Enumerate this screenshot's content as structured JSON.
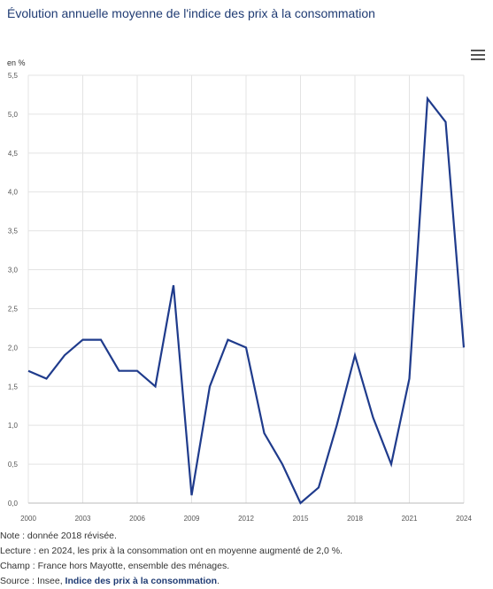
{
  "title": "Évolution annuelle moyenne de l'indice des prix à la consommation",
  "menu_icon": "hamburger-menu-icon",
  "chart_data": {
    "type": "line",
    "title": "Évolution annuelle moyenne de l'indice des prix à la consommation",
    "ylabel": "en %",
    "xlabel": "",
    "ylim": [
      0,
      5.5
    ],
    "xlim": [
      2000,
      2024
    ],
    "yticks": [
      "0,0",
      "0,5",
      "1,0",
      "1,5",
      "2,0",
      "2,5",
      "3,0",
      "3,5",
      "4,0",
      "4,5",
      "5,0",
      "5,5"
    ],
    "xticks": [
      "2000",
      "2003",
      "2006",
      "2009",
      "2012",
      "2015",
      "2018",
      "2021",
      "2024"
    ],
    "grid": true,
    "line_color": "#1f3b8c",
    "series": [
      {
        "x": [
          2000,
          2001,
          2002,
          2003,
          2004,
          2005,
          2006,
          2007,
          2008,
          2009,
          2010,
          2011,
          2012,
          2013,
          2014,
          2015,
          2016,
          2017,
          2018,
          2019,
          2020,
          2021,
          2022,
          2023,
          2024
        ],
        "values": [
          1.7,
          1.6,
          1.9,
          2.1,
          2.1,
          1.7,
          1.7,
          1.5,
          2.8,
          0.1,
          1.5,
          2.1,
          2.0,
          0.9,
          0.5,
          0.0,
          0.2,
          1.0,
          1.9,
          1.1,
          0.5,
          1.6,
          5.2,
          4.9,
          2.0
        ]
      }
    ]
  },
  "notes": {
    "note": "Note : donnée 2018 révisée.",
    "reading": "Lecture : en 2024, les prix à la consommation ont en moyenne augmenté de 2,0 %.",
    "scope": "Champ : France hors Mayotte, ensemble des ménages.",
    "source_prefix": "Source : Insee, ",
    "source_link": "Indice des prix à la consommation",
    "source_suffix": "."
  }
}
